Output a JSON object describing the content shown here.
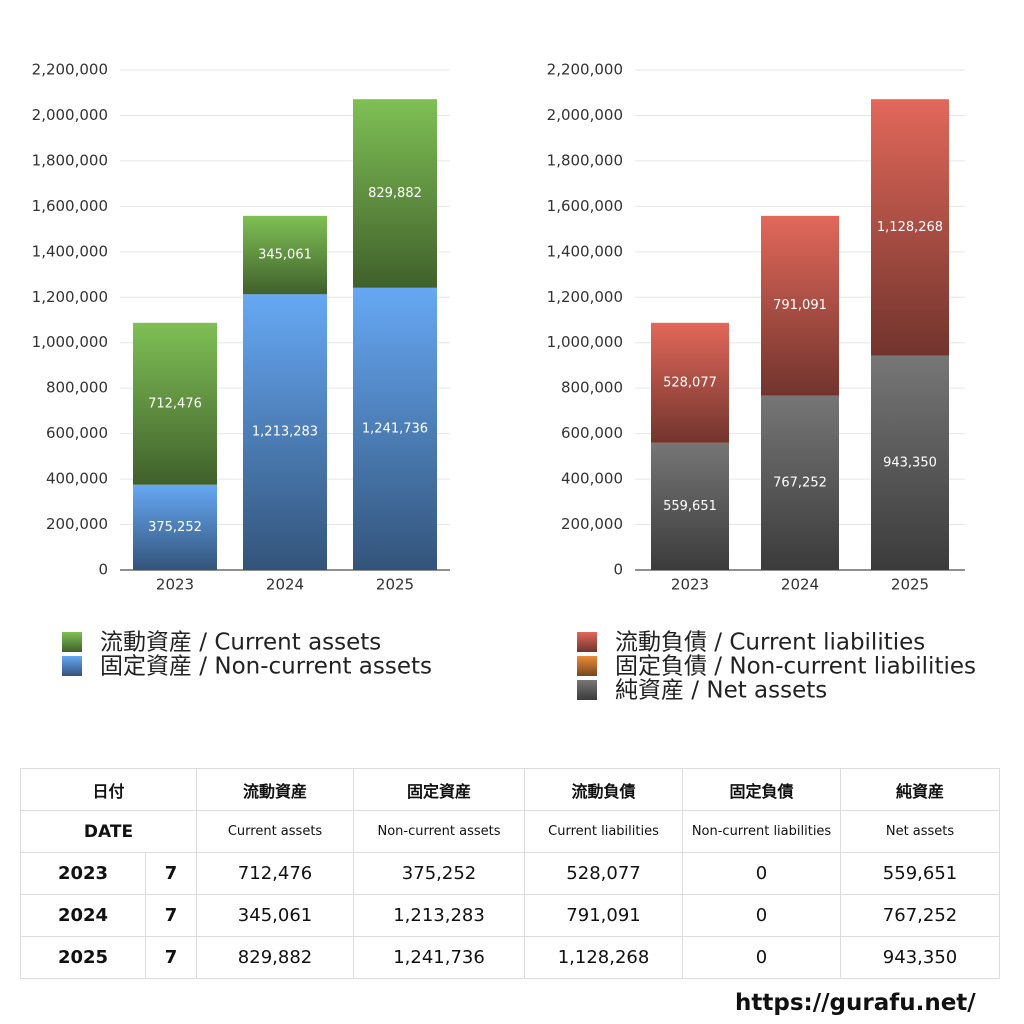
{
  "chart_data": [
    {
      "type": "bar",
      "stacked": true,
      "categories": [
        "2023",
        "2024",
        "2025"
      ],
      "ylim": [
        0,
        2200000
      ],
      "yticks": [
        0,
        {
          "value": 200000,
          "label": "200,000"
        },
        {
          "value": 400000,
          "label": "400,000"
        },
        {
          "value": 600000,
          "label": "600,000"
        },
        {
          "value": 800000,
          "label": "800,000"
        },
        {
          "value": 1000000,
          "label": "1,000,000"
        },
        {
          "value": 1200000,
          "label": "1,200,000"
        },
        {
          "value": 1400000,
          "label": "1,400,000"
        },
        {
          "value": 1600000,
          "label": "1,600,000"
        },
        {
          "value": 1800000,
          "label": "1,800,000"
        },
        {
          "value": 2000000,
          "label": "2,000,000"
        },
        {
          "value": 2200000,
          "label": "2,200,000"
        }
      ],
      "grid": true,
      "series": [
        {
          "name": "流動資産 / Current assets",
          "color": "#7fc055",
          "values": [
            712476,
            345061,
            829882
          ],
          "value_labels": [
            "712,476",
            "345,061",
            "829,882"
          ]
        },
        {
          "name": "固定資産 / Non-current assets",
          "color": "#66a8f4",
          "values": [
            375252,
            1213283,
            1241736
          ],
          "value_labels": [
            "375,252",
            "1,213,283",
            "1,241,736"
          ]
        }
      ]
    },
    {
      "type": "bar",
      "stacked": true,
      "categories": [
        "2023",
        "2024",
        "2025"
      ],
      "ylim": [
        0,
        2200000
      ],
      "yticks": [
        0,
        {
          "value": 200000,
          "label": "200,000"
        },
        {
          "value": 400000,
          "label": "400,000"
        },
        {
          "value": 600000,
          "label": "600,000"
        },
        {
          "value": 800000,
          "label": "800,000"
        },
        {
          "value": 1000000,
          "label": "1,000,000"
        },
        {
          "value": 1200000,
          "label": "1,200,000"
        },
        {
          "value": 1400000,
          "label": "1,400,000"
        },
        {
          "value": 1600000,
          "label": "1,600,000"
        },
        {
          "value": 1800000,
          "label": "1,800,000"
        },
        {
          "value": 2000000,
          "label": "2,000,000"
        },
        {
          "value": 2200000,
          "label": "2,200,000"
        }
      ],
      "grid": true,
      "series": [
        {
          "name": "流動負債 / Current liabilities",
          "color": "#e2685a",
          "values": [
            528077,
            791091,
            1128268
          ],
          "value_labels": [
            "528,077",
            "791,091",
            "1,128,268"
          ]
        },
        {
          "name": "固定負債 / Non-current liabilities",
          "color": "#ec8c3c",
          "values": [
            0,
            0,
            0
          ]
        },
        {
          "name": "純資産 / Net assets",
          "color": "#767676",
          "values": [
            559651,
            767252,
            943350
          ],
          "value_labels": [
            "559,651",
            "767,252",
            "943,350"
          ]
        }
      ]
    }
  ],
  "table": {
    "date_ja": "日付",
    "date_en": "DATE",
    "columns": [
      {
        "ja": "流動資産",
        "en": "Current assets"
      },
      {
        "ja": "固定資産",
        "en": "Non-current assets"
      },
      {
        "ja": "流動負債",
        "en": "Current liabilities"
      },
      {
        "ja": "固定負債",
        "en": "Non-current liabilities"
      },
      {
        "ja": "純資産",
        "en": "Net assets"
      }
    ],
    "rows": [
      [
        "2023",
        "7",
        "712,476",
        "375,252",
        "528,077",
        "0",
        "559,651"
      ],
      [
        "2024",
        "7",
        "345,061",
        "1,213,283",
        "791,091",
        "0",
        "767,252"
      ],
      [
        "2025",
        "7",
        "829,882",
        "1,241,736",
        "1,128,268",
        "0",
        "943,350"
      ]
    ]
  },
  "url": "https://gurafu.net/"
}
